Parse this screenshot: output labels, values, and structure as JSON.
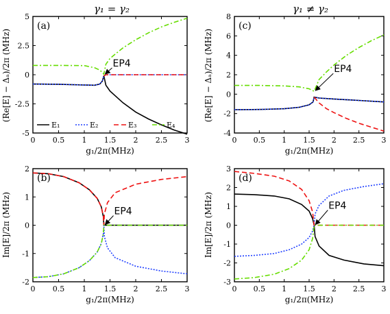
{
  "columns": [
    {
      "title": "γ₁ = γ₂"
    },
    {
      "title": "γ₁ ≠ γ₂"
    }
  ],
  "colors": {
    "E1": "#000000",
    "E2": "#1f3fff",
    "E3": "#ee1111",
    "E4": "#66dd00"
  },
  "chart_data": [
    {
      "id": "a",
      "type": "line",
      "panel_label": "(a)",
      "xlabel": "g₁/2π(MHz)",
      "ylabel": "(Re[E] − Δₐ)/2π (MHz)",
      "xlim": [
        0,
        3
      ],
      "ylim": [
        -5,
        5
      ],
      "xticks": [
        0,
        0.5,
        1,
        1.5,
        2,
        2.5,
        3
      ],
      "xtick_labels": [
        "0",
        "0.5",
        "1",
        "1.5",
        "2",
        "2.5",
        "3"
      ],
      "yticks": [
        5,
        2.5,
        0,
        -2.5,
        -5
      ],
      "ytick_labels": [
        "5",
        "2.5",
        "0",
        "-2.5",
        "-5"
      ],
      "annotation": {
        "text": "EP4",
        "x": 1.38,
        "y": 0
      },
      "legend": [
        "E₁",
        "E₂",
        "E₃",
        "E₄"
      ],
      "series": [
        {
          "name": "E₁",
          "x": [
            0,
            0.5,
            1,
            1.2,
            1.3,
            1.35,
            1.38,
            1.42,
            1.5,
            1.75,
            2,
            2.25,
            2.5,
            2.75,
            3
          ],
          "y": [
            -0.8,
            -0.82,
            -0.88,
            -0.9,
            -0.8,
            -0.55,
            -0.1,
            -0.9,
            -1.4,
            -2.4,
            -3.2,
            -3.8,
            -4.3,
            -4.75,
            -5.1
          ]
        },
        {
          "name": "E₂",
          "x": [
            0,
            0.5,
            1,
            1.2,
            1.3,
            1.35,
            1.38,
            1.42,
            2,
            3
          ],
          "y": [
            -0.8,
            -0.82,
            -0.88,
            -0.9,
            -0.8,
            -0.55,
            -0.1,
            0,
            0,
            0
          ]
        },
        {
          "name": "E₃",
          "x": [
            1.38,
            1.42,
            2,
            3
          ],
          "y": [
            -0.1,
            0,
            0,
            0
          ]
        },
        {
          "name": "E₄",
          "x": [
            0,
            0.5,
            1,
            1.2,
            1.3,
            1.35,
            1.38,
            1.42,
            1.5,
            1.75,
            2,
            2.25,
            2.5,
            2.75,
            3
          ],
          "y": [
            0.8,
            0.8,
            0.78,
            0.6,
            0.4,
            0.2,
            0.05,
            0.9,
            1.4,
            2.3,
            3.0,
            3.6,
            4.1,
            4.5,
            4.85
          ]
        }
      ]
    },
    {
      "id": "b",
      "type": "line",
      "panel_label": "(b)",
      "xlabel": "g₁/2π(MHz)",
      "ylabel": "Im[E]/2π (MHz)",
      "xlim": [
        0,
        3
      ],
      "ylim": [
        -2,
        2
      ],
      "xticks": [
        0,
        0.5,
        1,
        1.5,
        2,
        2.5,
        3
      ],
      "xtick_labels": [
        "0",
        "0.5",
        "1",
        "1.5",
        "2",
        "2.5",
        "3"
      ],
      "yticks": [
        2,
        1,
        0,
        -1,
        -2
      ],
      "ytick_labels": [
        "2",
        "1",
        "0",
        "-1",
        "-2"
      ],
      "annotation": {
        "text": "EP4",
        "x": 1.38,
        "y": 0
      },
      "series": [
        {
          "name": "E₁",
          "x": [
            0,
            0.3,
            0.6,
            0.9,
            1.1,
            1.25,
            1.33,
            1.37,
            1.38,
            1.5,
            2,
            3
          ],
          "y": [
            1.85,
            1.82,
            1.72,
            1.5,
            1.25,
            0.95,
            0.65,
            0.3,
            0,
            0,
            0,
            0
          ]
        },
        {
          "name": "E₂",
          "x": [
            0,
            0.3,
            0.6,
            0.9,
            1.1,
            1.25,
            1.33,
            1.37,
            1.38,
            1.39,
            1.45,
            1.6,
            2,
            2.5,
            3
          ],
          "y": [
            -1.85,
            -1.82,
            -1.72,
            -1.5,
            -1.25,
            -0.95,
            -0.65,
            -0.3,
            0,
            -0.4,
            -0.8,
            -1.15,
            -1.45,
            -1.62,
            -1.72
          ]
        },
        {
          "name": "E₃",
          "x": [
            0,
            0.3,
            0.6,
            0.9,
            1.1,
            1.25,
            1.33,
            1.37,
            1.38,
            1.39,
            1.45,
            1.6,
            2,
            2.5,
            3
          ],
          "y": [
            1.85,
            1.82,
            1.72,
            1.5,
            1.25,
            0.95,
            0.65,
            0.3,
            0,
            0.4,
            0.8,
            1.15,
            1.45,
            1.62,
            1.72
          ]
        },
        {
          "name": "E₄",
          "x": [
            0,
            0.3,
            0.6,
            0.9,
            1.1,
            1.25,
            1.33,
            1.37,
            1.38,
            1.5,
            2,
            3
          ],
          "y": [
            -1.85,
            -1.82,
            -1.72,
            -1.5,
            -1.25,
            -0.95,
            -0.65,
            -0.3,
            0,
            0,
            0,
            0
          ]
        }
      ]
    },
    {
      "id": "c",
      "type": "line",
      "panel_label": "(c)",
      "xlabel": "g₁/2π(MHz)",
      "ylabel": "(Re[E] − Δₐ)/2π (MHz)",
      "xlim": [
        0,
        3
      ],
      "ylim": [
        -4,
        8
      ],
      "xticks": [
        0,
        0.5,
        1,
        1.5,
        2,
        2.5,
        3
      ],
      "xtick_labels": [
        "0",
        "0.5",
        "1",
        "1.5",
        "2",
        "2.5",
        "3"
      ],
      "yticks": [
        8,
        6,
        4,
        2,
        0,
        -2,
        -4
      ],
      "ytick_labels": [
        "8",
        "6",
        "4",
        "2",
        "0",
        "-2",
        "-4"
      ],
      "annotation": {
        "text": "EP4",
        "x": 1.6,
        "y": 0.3
      },
      "series": [
        {
          "name": "E₁",
          "x": [
            0,
            0.5,
            1,
            1.3,
            1.5,
            1.58,
            1.6,
            1.7,
            2,
            2.5,
            3
          ],
          "y": [
            -1.6,
            -1.58,
            -1.5,
            -1.35,
            -1.1,
            -0.8,
            -0.3,
            -0.4,
            -0.5,
            -0.65,
            -0.8
          ]
        },
        {
          "name": "E₂",
          "x": [
            0,
            0.5,
            1,
            1.3,
            1.5,
            1.58,
            1.6,
            1.7,
            2,
            2.5,
            3
          ],
          "y": [
            -1.6,
            -1.58,
            -1.5,
            -1.35,
            -1.1,
            -0.8,
            -0.3,
            -0.4,
            -0.5,
            -0.65,
            -0.8
          ]
        },
        {
          "name": "E₃",
          "x": [
            1.6,
            1.7,
            1.85,
            2,
            2.25,
            2.5,
            2.75,
            3
          ],
          "y": [
            -0.3,
            -0.9,
            -1.5,
            -1.9,
            -2.5,
            -3.0,
            -3.4,
            -3.8
          ]
        },
        {
          "name": "E₄",
          "x": [
            0,
            0.5,
            1,
            1.3,
            1.5,
            1.58,
            1.6,
            1.7,
            1.85,
            2,
            2.25,
            2.5,
            2.75,
            3
          ],
          "y": [
            0.9,
            0.9,
            0.85,
            0.75,
            0.55,
            0.35,
            0.3,
            1.5,
            2.3,
            3.0,
            4.0,
            4.8,
            5.5,
            6.1
          ]
        }
      ]
    },
    {
      "id": "d",
      "type": "line",
      "panel_label": "(d)",
      "xlabel": "g₁/2π(MHz)",
      "ylabel": "Im[E]/2π (MHz)",
      "xlim": [
        0,
        3
      ],
      "ylim": [
        -3,
        3
      ],
      "xticks": [
        0,
        0.5,
        1,
        1.5,
        2,
        2.5,
        3
      ],
      "xtick_labels": [
        "0",
        "0.5",
        "1",
        "1.5",
        "2",
        "2.5",
        "3"
      ],
      "yticks": [
        3,
        2,
        1,
        0,
        -1,
        -2,
        -3
      ],
      "ytick_labels": [
        "3",
        "2",
        "1",
        "0",
        "-1",
        "-2",
        "-3"
      ],
      "annotation": {
        "text": "EP4",
        "x": 1.6,
        "y": 0
      },
      "series": [
        {
          "name": "E₁",
          "x": [
            0,
            0.4,
            0.8,
            1.1,
            1.35,
            1.5,
            1.57,
            1.6,
            1.62,
            1.7,
            1.9,
            2.2,
            2.6,
            3
          ],
          "y": [
            1.65,
            1.62,
            1.55,
            1.4,
            1.1,
            0.75,
            0.35,
            0,
            -0.6,
            -1.1,
            -1.6,
            -1.85,
            -2.05,
            -2.15
          ]
        },
        {
          "name": "E₂",
          "x": [
            0,
            0.4,
            0.8,
            1.1,
            1.35,
            1.5,
            1.57,
            1.6,
            1.62,
            1.7,
            1.9,
            2.2,
            2.6,
            3
          ],
          "y": [
            -1.65,
            -1.6,
            -1.5,
            -1.3,
            -1.0,
            -0.65,
            -0.3,
            0,
            0.6,
            1.05,
            1.55,
            1.85,
            2.05,
            2.2
          ]
        },
        {
          "name": "E₃",
          "x": [
            0,
            0.4,
            0.8,
            1.1,
            1.35,
            1.5,
            1.57,
            1.6,
            1.7,
            2,
            3
          ],
          "y": [
            2.85,
            2.75,
            2.6,
            2.35,
            1.9,
            1.3,
            0.7,
            0,
            0,
            0,
            0
          ]
        },
        {
          "name": "E₄",
          "x": [
            0,
            0.4,
            0.8,
            1.1,
            1.35,
            1.5,
            1.57,
            1.6,
            1.7,
            2,
            3
          ],
          "y": [
            -2.85,
            -2.78,
            -2.6,
            -2.3,
            -1.85,
            -1.3,
            -0.7,
            0,
            0,
            0,
            0
          ]
        }
      ]
    }
  ]
}
